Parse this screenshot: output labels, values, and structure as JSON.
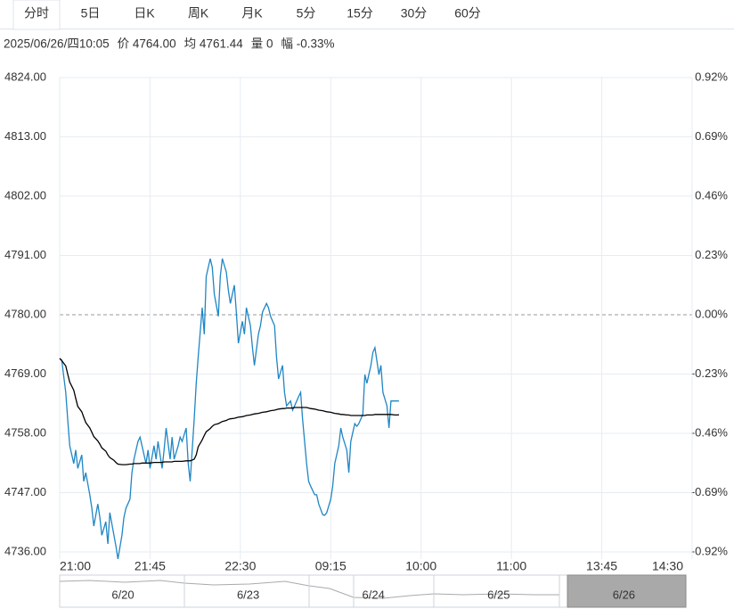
{
  "tabs": [
    "分时",
    "5日",
    "日K",
    "周K",
    "月K",
    "5分",
    "15分",
    "30分",
    "60分"
  ],
  "selected_tab": 0,
  "info": [
    "2025/06/26/四10:05",
    "价 4764.00",
    "均 4761.44",
    "量 0",
    "幅 -0.33%"
  ],
  "navigator": {
    "labels": [
      "6/20",
      "6/23",
      "6/24",
      "6/25",
      "6/26"
    ],
    "selected": 4
  },
  "chart_data": {
    "type": "line",
    "x": [
      0,
      1,
      3,
      4,
      5,
      7,
      8,
      9,
      11,
      12,
      13,
      15,
      16,
      17,
      19,
      20,
      21,
      23,
      24,
      25,
      27,
      28,
      29,
      31,
      32,
      33,
      35,
      36,
      37,
      39,
      40,
      41,
      43,
      44,
      45,
      47,
      48,
      49,
      51,
      52,
      53,
      55,
      56,
      57,
      59,
      60,
      61,
      63,
      64,
      65,
      67,
      68,
      69,
      71,
      72,
      73,
      75,
      76,
      77,
      79,
      80,
      81,
      83,
      84,
      85,
      87,
      88,
      89,
      91,
      92,
      93,
      95,
      96,
      97,
      99,
      100,
      101,
      103,
      104,
      105,
      107,
      108,
      109,
      111,
      112,
      113,
      115,
      116,
      117,
      119,
      120,
      121,
      123,
      124,
      125,
      127,
      128,
      129,
      131,
      132,
      133,
      135,
      136,
      137,
      139,
      140,
      141,
      143,
      144,
      145,
      147,
      148,
      149,
      151,
      152,
      153,
      155,
      156,
      157,
      159,
      160,
      161,
      163,
      164,
      165,
      167,
      168,
      169
    ],
    "series": [
      {
        "name": "价",
        "color": "#1f86c4",
        "values": [
          4771.9,
          4771.6,
          4765.6,
          4760.6,
          4755.7,
          4752.4,
          4754.9,
          4751.5,
          4754.0,
          4749.1,
          4750.7,
          4746.6,
          4744.1,
          4740.8,
          4744.9,
          4742.4,
          4739.1,
          4741.6,
          4737.5,
          4743.3,
          4739.1,
          4737.1,
          4734.7,
          4739.1,
          4742.4,
          4744.1,
          4745.8,
          4750.7,
          4753.2,
          4756.5,
          4757.3,
          4755.7,
          4752.4,
          4754.9,
          4751.5,
          4755.7,
          4753.2,
          4756.5,
          4751.5,
          4754.9,
          4759.0,
          4753.2,
          4757.3,
          4753.2,
          4755.7,
          4757.3,
          4756.5,
          4759.0,
          4752.4,
          4749.1,
          4760.6,
          4767.3,
          4772.2,
          4781.3,
          4776.4,
          4787.1,
          4790.4,
          4788.8,
          4783.8,
          4779.7,
          4787.1,
          4790.4,
          4787.9,
          4784.6,
          4782.1,
          4785.5,
          4780.5,
          4774.7,
          4778.8,
          4776.4,
          4781.3,
          4778.0,
          4773.9,
          4770.6,
          4776.4,
          4778.0,
          4780.5,
          4782.1,
          4781.3,
          4779.7,
          4778.0,
          4772.2,
          4768.1,
          4770.6,
          4765.6,
          4763.1,
          4764.0,
          4762.3,
          4763.1,
          4764.8,
          4765.6,
          4760.6,
          4752.4,
          4749.1,
          4748.2,
          4746.6,
          4746.6,
          4744.9,
          4742.9,
          4742.8,
          4743.3,
          4745.8,
          4748.2,
          4752.4,
          4755.7,
          4759.0,
          4757.3,
          4754.9,
          4750.7,
          4756.5,
          4759.8,
          4759.3,
          4759.8,
          4761.5,
          4768.9,
          4767.3,
          4770.6,
          4773.0,
          4773.9,
          4768.9,
          4770.6,
          4765.6,
          4763.1,
          4759.0,
          4764.0,
          4764.0,
          4764.0,
          4764.0
        ]
      },
      {
        "name": "均",
        "color": "#000000",
        "values": [
          4771.9,
          4771.5,
          4770.5,
          4769.0,
          4767.5,
          4766.0,
          4764.5,
          4763.0,
          4762.0,
          4761.0,
          4760.0,
          4759.0,
          4758.2,
          4757.4,
          4756.6,
          4756.0,
          4755.3,
          4754.7,
          4754.0,
          4753.5,
          4753.0,
          4752.6,
          4752.3,
          4752.2,
          4752.2,
          4752.2,
          4752.3,
          4752.3,
          4752.4,
          4752.4,
          4752.4,
          4752.5,
          4752.5,
          4752.5,
          4752.5,
          4752.6,
          4752.6,
          4752.6,
          4752.6,
          4752.7,
          4752.7,
          4752.7,
          4752.7,
          4752.8,
          4752.8,
          4752.8,
          4752.8,
          4752.9,
          4752.9,
          4752.9,
          4753.2,
          4754.0,
          4755.5,
          4756.8,
          4757.6,
          4758.3,
          4758.9,
          4759.3,
          4759.6,
          4759.8,
          4760.0,
          4760.2,
          4760.4,
          4760.6,
          4760.7,
          4760.8,
          4760.9,
          4761.0,
          4761.1,
          4761.2,
          4761.3,
          4761.4,
          4761.5,
          4761.6,
          4761.7,
          4761.8,
          4761.9,
          4762.0,
          4762.1,
          4762.2,
          4762.3,
          4762.4,
          4762.5,
          4762.6,
          4762.6,
          4762.7,
          4762.7,
          4762.7,
          4762.8,
          4762.8,
          4762.8,
          4762.8,
          4762.8,
          4762.7,
          4762.6,
          4762.5,
          4762.4,
          4762.3,
          4762.2,
          4762.1,
          4762.0,
          4761.9,
          4761.8,
          4761.7,
          4761.6,
          4761.5,
          4761.5,
          4761.4,
          4761.4,
          4761.3,
          4761.3,
          4761.3,
          4761.3,
          4761.3,
          4761.3,
          4761.4,
          4761.4,
          4761.4,
          4761.5,
          4761.5,
          4761.5,
          4761.5,
          4761.5,
          4761.5,
          4761.5,
          4761.4,
          4761.4,
          4761.44
        ]
      }
    ],
    "xlim": [
      0,
      315
    ],
    "xticks": [
      {
        "value": 0,
        "label": "21:00"
      },
      {
        "value": 45,
        "label": "21:45"
      },
      {
        "value": 90,
        "label": "22:30"
      },
      {
        "value": 135,
        "label": "09:15"
      },
      {
        "value": 180,
        "label": "10:00"
      },
      {
        "value": 225,
        "label": "11:00"
      },
      {
        "value": 270,
        "label": "13:45"
      },
      {
        "value": 315,
        "label": "14:30"
      }
    ],
    "ylim": [
      4736,
      4824
    ],
    "yticks": [
      {
        "value": 4736,
        "label": "4736.00"
      },
      {
        "value": 4747,
        "label": "4747.00"
      },
      {
        "value": 4758,
        "label": "4758.00"
      },
      {
        "value": 4769,
        "label": "4769.00"
      },
      {
        "value": 4780,
        "label": "4780.00"
      },
      {
        "value": 4791,
        "label": "4791.00"
      },
      {
        "value": 4802,
        "label": "4802.00"
      },
      {
        "value": 4813,
        "label": "4813.00"
      },
      {
        "value": 4824,
        "label": "4824.00"
      }
    ],
    "y2lim": [
      -0.92,
      0.92
    ],
    "y2ticks": [
      {
        "value": -0.92,
        "label": "-0.92%"
      },
      {
        "value": -0.69,
        "label": "-0.69%"
      },
      {
        "value": -0.46,
        "label": "-0.46%"
      },
      {
        "value": -0.23,
        "label": "-0.23%"
      },
      {
        "value": 0,
        "label": "0.00%"
      },
      {
        "value": 0.23,
        "label": "0.23%"
      },
      {
        "value": 0.46,
        "label": "0.46%"
      },
      {
        "value": 0.69,
        "label": "0.69%"
      },
      {
        "value": 0.92,
        "label": "0.92%"
      }
    ],
    "base": 4780,
    "up_color": "#d42a2a",
    "down_color": "#1e9a1e",
    "grid": true
  }
}
